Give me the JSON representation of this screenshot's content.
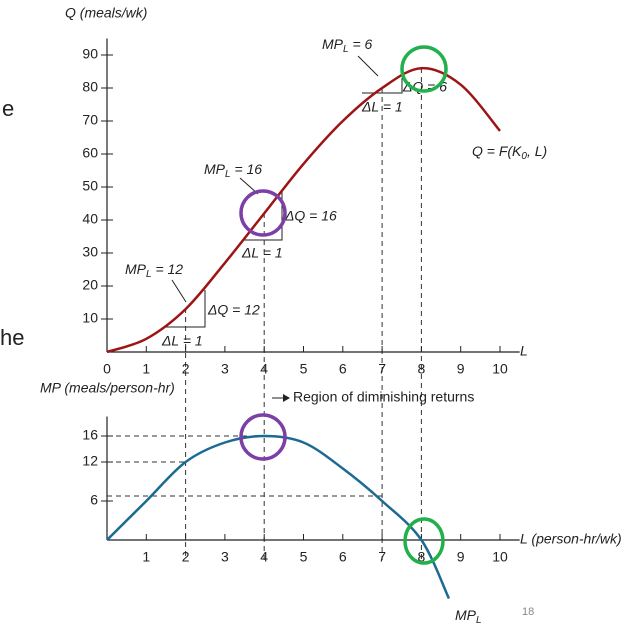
{
  "slide": {
    "fragments": [
      "e",
      "he"
    ],
    "page_number": "18"
  },
  "chart_data": [
    {
      "type": "line",
      "y_label": "Q (meals/wk)",
      "x_label": "L",
      "x": [
        0,
        1,
        2,
        3,
        4,
        5,
        6,
        7,
        8,
        9,
        10
      ],
      "series": [
        {
          "color": "#9e1414",
          "values": [
            0,
            4,
            13,
            27,
            42,
            57,
            70,
            80,
            86,
            81,
            67
          ]
        }
      ],
      "curve_label": {
        "text": "Q = F(K",
        "sub": "0",
        "after": ", L)"
      },
      "xlim": [
        0,
        10.5
      ],
      "xticks": [
        0,
        1,
        2,
        3,
        4,
        5,
        6,
        7,
        8,
        9,
        10
      ],
      "ylim": [
        0,
        95
      ],
      "yticks": [
        10,
        20,
        30,
        40,
        50,
        60,
        70,
        80,
        90
      ],
      "annotations": [
        {
          "text": "MP",
          "sub": "L",
          "after": " = 12"
        },
        {
          "text": "ΔQ = 12"
        },
        {
          "text": "ΔL = 1"
        },
        {
          "text": "MP",
          "sub": "L",
          "after": " = 16"
        },
        {
          "text": "ΔQ = 16"
        },
        {
          "text": "ΔL = 1"
        },
        {
          "text": "MP",
          "sub": "L",
          "after": " = 6"
        },
        {
          "text": "ΔQ = 6"
        },
        {
          "text": "ΔL = 1"
        }
      ]
    },
    {
      "type": "line",
      "y_label": "MP (meals/person-hr)",
      "x_label": "L (person-hr/wk)",
      "x": [
        0,
        1,
        2,
        3,
        4,
        5,
        6,
        7,
        8,
        8.7
      ],
      "series": [
        {
          "color": "#1b6a93",
          "values": [
            0,
            6,
            12,
            15,
            16,
            15,
            11,
            6,
            0,
            -9
          ]
        }
      ],
      "curve_label": {
        "text": "MP",
        "sub": "L"
      },
      "xlim": [
        0,
        10.5
      ],
      "xticks": [
        1,
        2,
        3,
        4,
        5,
        6,
        7,
        8,
        9,
        10
      ],
      "ylim": [
        0,
        19
      ],
      "yticks": [
        6,
        12,
        16
      ],
      "annotations": [
        {
          "text": "Region of diminishing returns"
        }
      ]
    }
  ]
}
